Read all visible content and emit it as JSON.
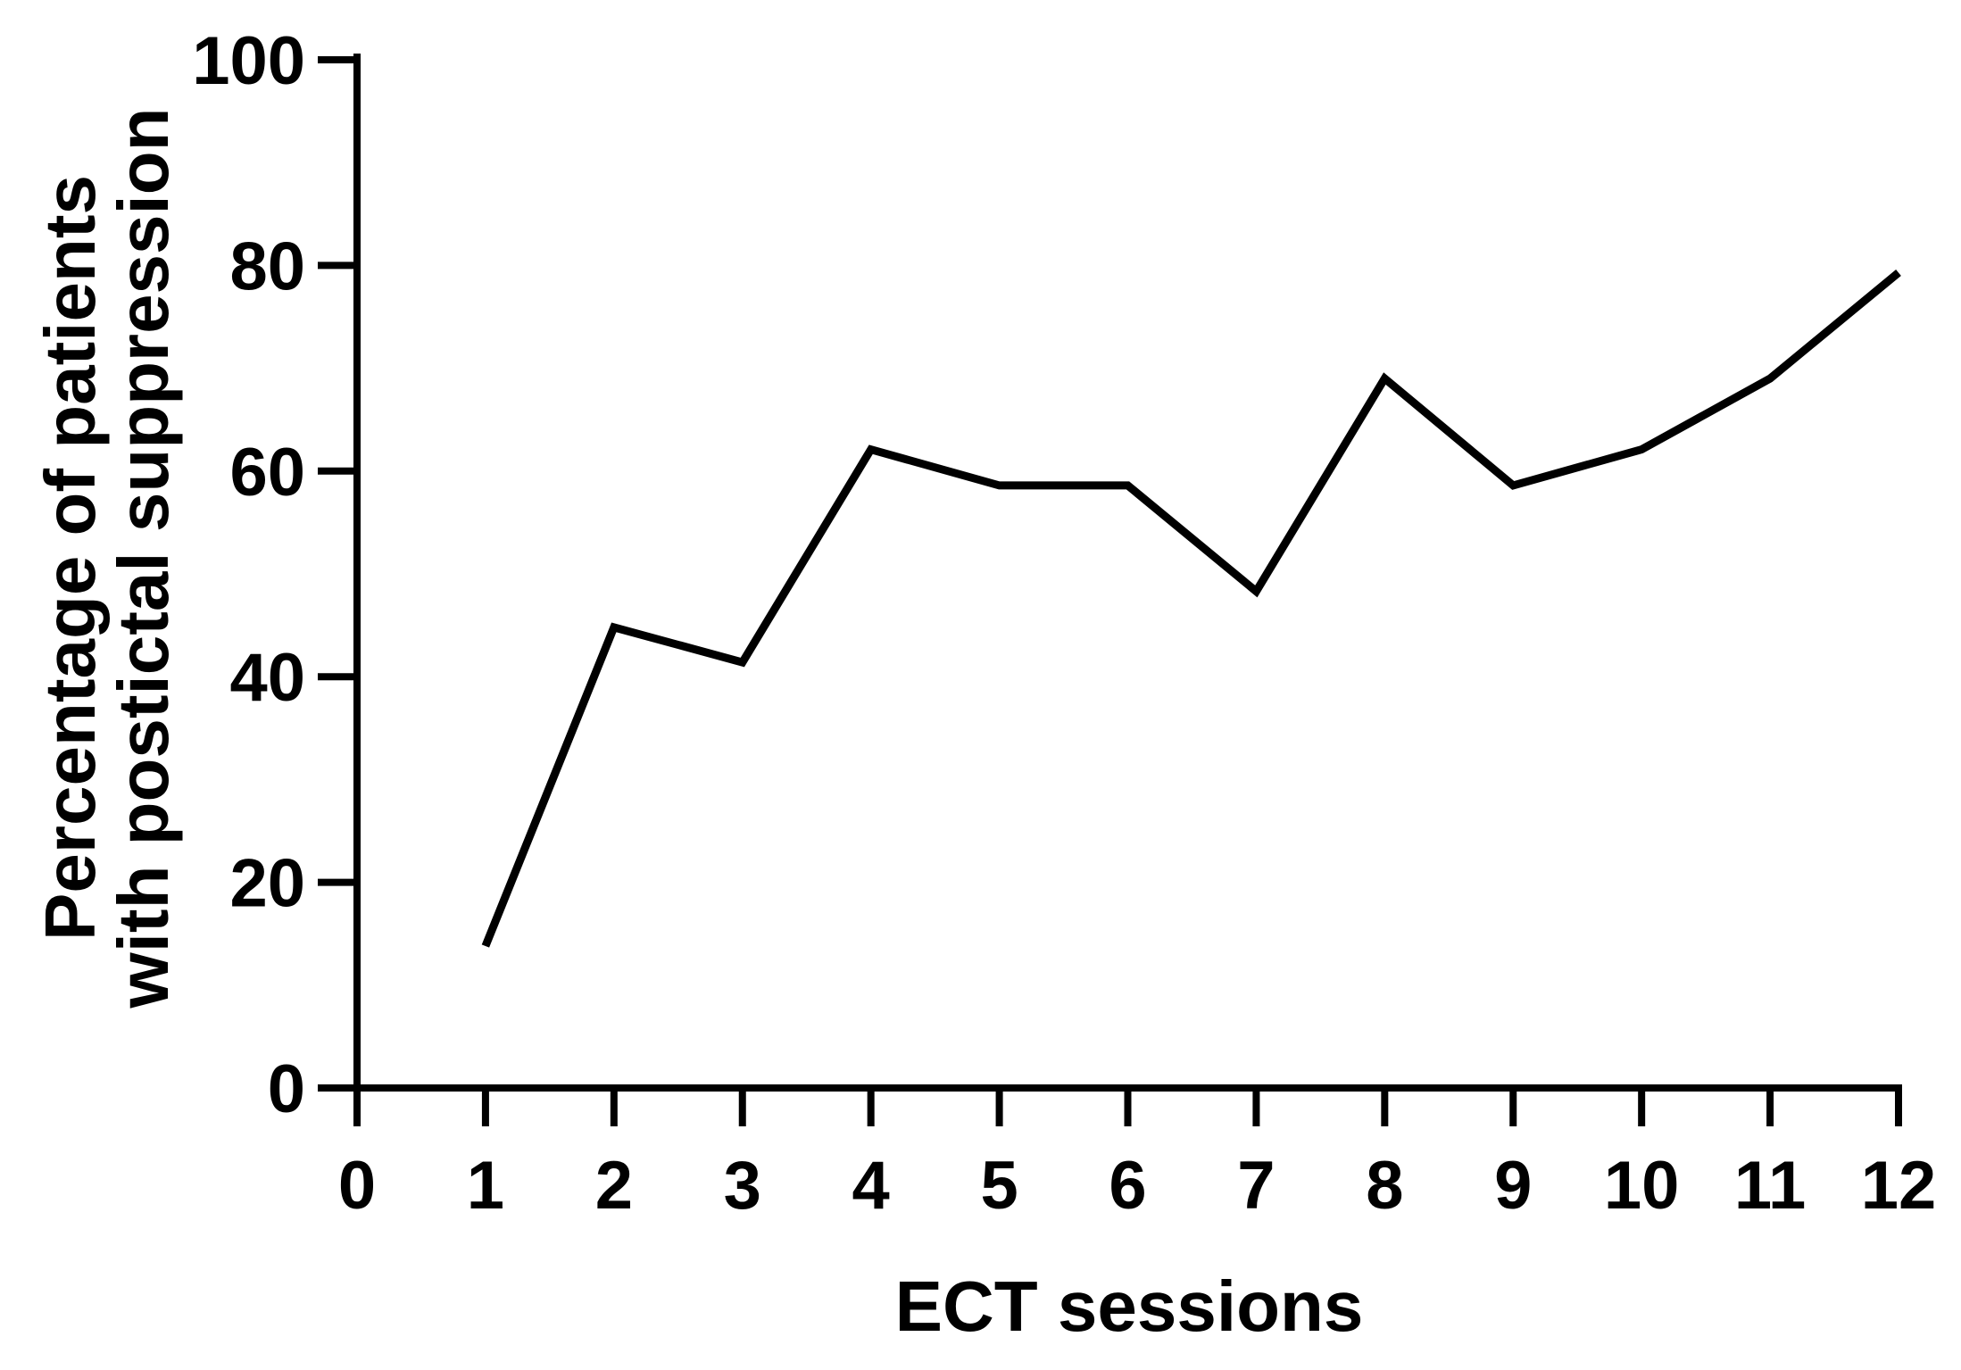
{
  "chart_data": {
    "type": "line",
    "xlabel": "ECT sessions",
    "ylabel_lines": [
      "Percentage of patients",
      "with postictal suppression"
    ],
    "xlim": [
      0,
      12
    ],
    "ylim": [
      0,
      100
    ],
    "x_ticks": [
      "0",
      "1",
      "2",
      "3",
      "4",
      "5",
      "6",
      "7",
      "8",
      "9",
      "10",
      "11",
      "12"
    ],
    "y_ticks": [
      "0",
      "20",
      "40",
      "60",
      "80",
      "100"
    ],
    "grid": false,
    "line_color": "#000000",
    "series": [
      {
        "x": [
          1,
          2,
          3,
          4,
          5,
          6,
          7,
          8,
          9,
          10,
          11,
          12
        ],
        "y": [
          13.8,
          44.8,
          41.4,
          62.1,
          58.6,
          58.6,
          48.3,
          69.0,
          58.6,
          62.1,
          69.0,
          79.3
        ]
      }
    ]
  }
}
